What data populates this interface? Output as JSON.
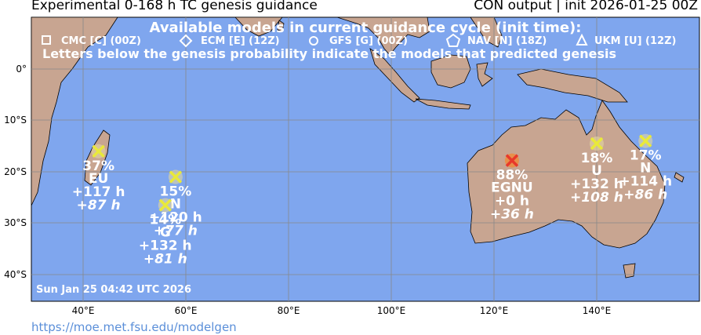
{
  "title_left": "Experimental 0-168 h TC genesis guidance",
  "title_right": "CON output | init 2026-01-25 00Z",
  "legend": {
    "heading": "Available models in current guidance cycle (init time):",
    "models": [
      {
        "symbol": "square",
        "label": "CMC [C] (00Z)"
      },
      {
        "symbol": "diamond",
        "label": "ECM [E] (12Z)"
      },
      {
        "symbol": "circle",
        "label": "GFS [G] (00Z)"
      },
      {
        "symbol": "pentagon",
        "label": "NAV [N] (18Z)"
      },
      {
        "symbol": "triangle",
        "label": "UKM [U] (12Z)"
      }
    ],
    "note": "Letters below the genesis probability indicate the models that predicted genesis"
  },
  "axes": {
    "x_ticks": [
      "40°E",
      "60°E",
      "80°E",
      "100°E",
      "120°E",
      "140°E"
    ],
    "y_ticks": [
      "0°",
      "10°S",
      "20°S",
      "30°S",
      "40°S"
    ]
  },
  "colors": {
    "ocean": "#7fa6ee",
    "land": "#c8a591",
    "marker_low": "#e9e93a",
    "marker_high": "#e8392b",
    "text": "#ffffff"
  },
  "storms": [
    {
      "id": "s1",
      "lon": 43,
      "lat": -16,
      "prob": "37%",
      "models": "EU",
      "first": "+117 h",
      "mean": "+87 h",
      "marker": "x-yellow"
    },
    {
      "id": "s2",
      "lon": 58,
      "lat": -21,
      "prob": "15%",
      "models": "N",
      "first": "+120 h",
      "mean": "+77 h",
      "marker": "x-yellow"
    },
    {
      "id": "s3",
      "lon": 56,
      "lat": -26.5,
      "prob": "14%",
      "models": "G",
      "first": "+132 h",
      "mean": "+81 h",
      "marker": "x-yellow"
    },
    {
      "id": "s4",
      "lon": 123.5,
      "lat": -17.8,
      "prob": "88%",
      "models": "EGNU",
      "first": "+0 h",
      "mean": "+36 h",
      "marker": "x-red"
    },
    {
      "id": "s5",
      "lon": 140,
      "lat": -14.5,
      "prob": "18%",
      "models": "U",
      "first": "+132 h",
      "mean": "+108 h",
      "marker": "x-yellow"
    },
    {
      "id": "s6",
      "lon": 149.5,
      "lat": -14,
      "prob": "17%",
      "models": "N",
      "first": "+114 h",
      "mean": "+86 h",
      "marker": "x-yellow"
    }
  ],
  "timestamp": "Sun Jan 25 04:42 UTC 2026",
  "source_url": "https://moe.met.fsu.edu/modelgen"
}
